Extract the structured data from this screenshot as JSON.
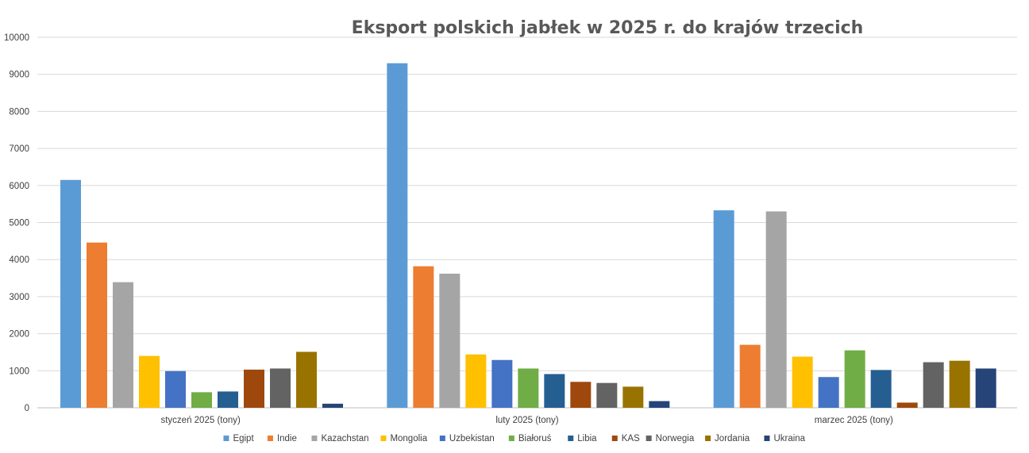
{
  "chart_data": {
    "type": "bar",
    "title": "Eksport polskich jabłek w 2025 r. do krajów trzecich",
    "categories": [
      "styczeń 2025 (tony)",
      "luty 2025 (tony)",
      "marzec 2025 (tony)"
    ],
    "ylim": [
      0,
      10000
    ],
    "yticks": [
      0,
      1000,
      2000,
      3000,
      4000,
      5000,
      6000,
      7000,
      8000,
      9000,
      10000
    ],
    "grid": true,
    "legend_position": "bottom",
    "series": [
      {
        "name": "Egipt",
        "color": "#5b9bd5",
        "values": [
          6150,
          9300,
          5330
        ]
      },
      {
        "name": "Indie",
        "color": "#ed7d31",
        "values": [
          4460,
          3820,
          1700
        ]
      },
      {
        "name": "Kazachstan",
        "color": "#a5a5a5",
        "values": [
          3390,
          3620,
          5300
        ]
      },
      {
        "name": "Mongolia",
        "color": "#ffc000",
        "values": [
          1400,
          1440,
          1380
        ]
      },
      {
        "name": "Uzbekistan",
        "color": "#4472c4",
        "values": [
          990,
          1290,
          830
        ]
      },
      {
        "name": "Białoruś",
        "color": "#70ad47",
        "values": [
          420,
          1060,
          1550
        ]
      },
      {
        "name": "Libia",
        "color": "#255e91",
        "values": [
          440,
          910,
          1020
        ]
      },
      {
        "name": "KAS",
        "color": "#9e480e",
        "values": [
          1030,
          700,
          140
        ]
      },
      {
        "name": "Norwegia",
        "color": "#636363",
        "values": [
          1060,
          670,
          1230
        ]
      },
      {
        "name": "Jordania",
        "color": "#997300",
        "values": [
          1510,
          570,
          1270
        ]
      },
      {
        "name": "Ukraina",
        "color": "#264478",
        "values": [
          110,
          180,
          1060
        ]
      }
    ]
  }
}
